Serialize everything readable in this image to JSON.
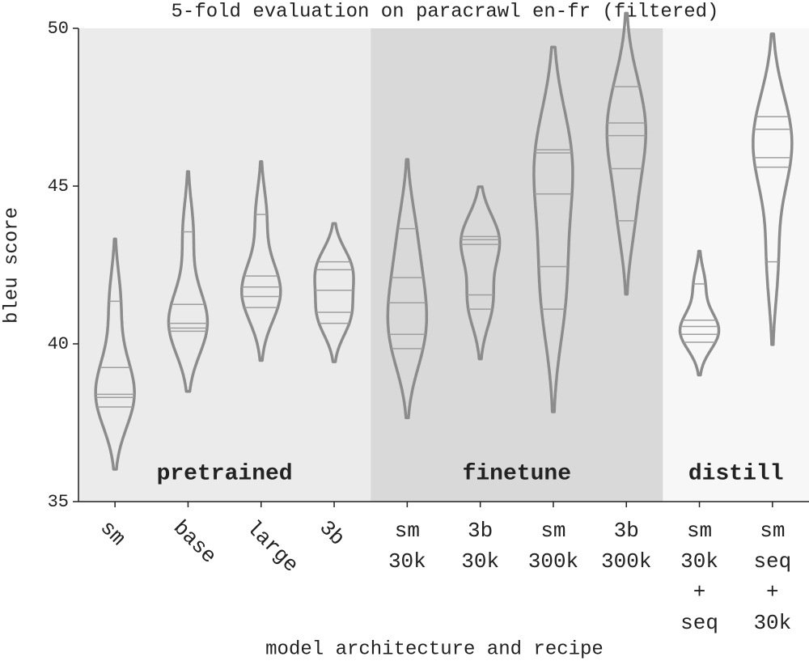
{
  "chart_data": {
    "type": "violin",
    "title": "5-fold evaluation on paracrawl en-fr (filtered)",
    "x_label": "model architecture and recipe",
    "y_label": "bleu score",
    "ylim": [
      35,
      50
    ],
    "yticks": [
      35,
      40,
      45,
      50
    ],
    "color": "#8c8c8c",
    "inner_color": "#9e9e9e",
    "categories": [
      [
        "sm"
      ],
      [
        "base"
      ],
      [
        "large"
      ],
      [
        "3b"
      ],
      [
        "sm",
        "30k"
      ],
      [
        "3b",
        "30k"
      ],
      [
        "sm",
        "300k"
      ],
      [
        {
          "text": "3b",
          "color": "#3a9a5b"
        },
        {
          "text": "300k",
          "color": "#3a9a5b"
        }
      ],
      [
        "sm",
        "30k",
        "+",
        {
          "text": "seq",
          "color": "#3a9a5b"
        }
      ],
      [
        "sm",
        {
          "text": "seq",
          "color": "#3a9a5b"
        },
        "+",
        "30k"
      ]
    ],
    "values": [
      [
        41.35,
        39.25,
        38.4,
        38.3,
        38.0
      ],
      [
        43.55,
        41.25,
        40.65,
        40.5,
        40.4
      ],
      [
        44.1,
        42.15,
        41.8,
        41.5,
        41.15
      ],
      [
        42.6,
        42.35,
        41.7,
        41.0,
        40.65
      ],
      [
        43.65,
        42.1,
        41.3,
        40.3,
        39.85
      ],
      [
        43.4,
        43.3,
        43.15,
        41.55,
        41.1
      ],
      [
        46.15,
        46.05,
        44.75,
        42.45,
        41.1
      ],
      [
        48.15,
        47.0,
        46.6,
        45.55,
        43.9
      ],
      [
        41.9,
        40.75,
        40.55,
        40.3,
        40.05
      ],
      [
        47.2,
        46.8,
        45.9,
        45.6,
        42.6
      ]
    ],
    "groups": [
      {
        "label": "pretrained",
        "span": 4,
        "color": "#ebebeb"
      },
      {
        "label": "finetune",
        "span": 4,
        "color": "#d9d9d9"
      },
      {
        "label": "distill",
        "span": 2,
        "color": "#f7f7f7"
      }
    ]
  }
}
